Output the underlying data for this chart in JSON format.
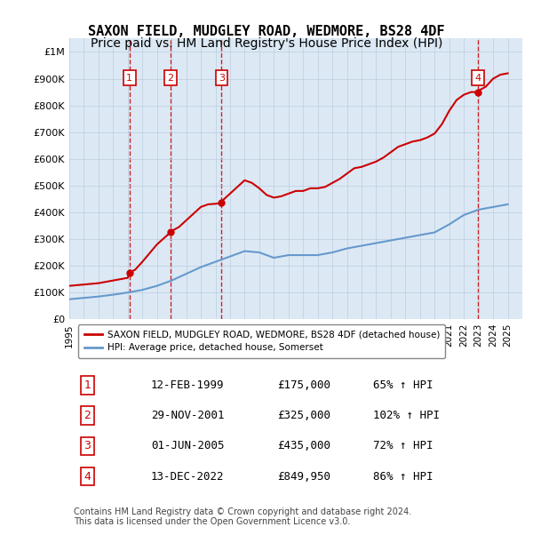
{
  "title": "SAXON FIELD, MUDGLEY ROAD, WEDMORE, BS28 4DF",
  "subtitle": "Price paid vs. HM Land Registry's House Price Index (HPI)",
  "title_fontsize": 11,
  "subtitle_fontsize": 10,
  "background_color": "#dce9f5",
  "plot_bg_color": "#dce9f5",
  "ylim": [
    0,
    1050000
  ],
  "xlim_start": 1995,
  "xlim_end": 2026,
  "yticks": [
    0,
    100000,
    200000,
    300000,
    400000,
    500000,
    600000,
    700000,
    800000,
    900000,
    1000000
  ],
  "ytick_labels": [
    "£0",
    "£100K",
    "£200K",
    "£300K",
    "£400K",
    "£500K",
    "£600K",
    "£700K",
    "£800K",
    "£900K",
    "£1M"
  ],
  "xticks": [
    1995,
    1996,
    1997,
    1998,
    1999,
    2000,
    2001,
    2002,
    2003,
    2004,
    2005,
    2006,
    2007,
    2008,
    2009,
    2010,
    2011,
    2012,
    2013,
    2014,
    2015,
    2016,
    2017,
    2018,
    2019,
    2020,
    2021,
    2022,
    2023,
    2024,
    2025
  ],
  "sale_dates": [
    1999.12,
    2001.92,
    2005.42,
    2022.95
  ],
  "sale_prices": [
    175000,
    325000,
    435000,
    849950
  ],
  "sale_labels": [
    "1",
    "2",
    "3",
    "4"
  ],
  "red_color": "#cc0000",
  "blue_color": "#6699cc",
  "sale_marker_color": "#cc0000",
  "vline_color": "#cc0000",
  "red_line_x": [
    1995.0,
    1996.0,
    1997.0,
    1998.0,
    1999.0,
    1999.12,
    1999.5,
    2000.0,
    2001.0,
    2001.92,
    2002.0,
    2002.5,
    2003.0,
    2003.5,
    2004.0,
    2004.5,
    2005.0,
    2005.42,
    2005.5,
    2006.0,
    2006.5,
    2007.0,
    2007.5,
    2008.0,
    2008.5,
    2009.0,
    2009.5,
    2010.0,
    2010.5,
    2011.0,
    2011.5,
    2012.0,
    2012.5,
    2013.0,
    2013.5,
    2014.0,
    2014.5,
    2015.0,
    2015.5,
    2016.0,
    2016.5,
    2017.0,
    2017.5,
    2018.0,
    2018.5,
    2019.0,
    2019.5,
    2020.0,
    2020.5,
    2021.0,
    2021.5,
    2022.0,
    2022.5,
    2022.95,
    2023.0,
    2023.5,
    2024.0,
    2024.5,
    2025.0
  ],
  "red_line_y": [
    125000,
    130000,
    135000,
    145000,
    155000,
    175000,
    185000,
    215000,
    280000,
    325000,
    330000,
    345000,
    370000,
    395000,
    420000,
    430000,
    432000,
    435000,
    445000,
    470000,
    495000,
    520000,
    510000,
    490000,
    465000,
    455000,
    460000,
    470000,
    480000,
    480000,
    490000,
    490000,
    495000,
    510000,
    525000,
    545000,
    565000,
    570000,
    580000,
    590000,
    605000,
    625000,
    645000,
    655000,
    665000,
    670000,
    680000,
    695000,
    730000,
    780000,
    820000,
    840000,
    850000,
    849950,
    855000,
    870000,
    900000,
    915000,
    920000
  ],
  "blue_line_x": [
    1995.0,
    1996.0,
    1997.0,
    1998.0,
    1999.0,
    2000.0,
    2001.0,
    2002.0,
    2003.0,
    2004.0,
    2005.0,
    2006.0,
    2007.0,
    2008.0,
    2009.0,
    2010.0,
    2011.0,
    2012.0,
    2013.0,
    2014.0,
    2015.0,
    2016.0,
    2017.0,
    2018.0,
    2019.0,
    2020.0,
    2021.0,
    2022.0,
    2023.0,
    2024.0,
    2025.0
  ],
  "blue_line_y": [
    75000,
    80000,
    85000,
    92000,
    100000,
    110000,
    125000,
    145000,
    170000,
    195000,
    215000,
    235000,
    255000,
    250000,
    230000,
    240000,
    240000,
    240000,
    250000,
    265000,
    275000,
    285000,
    295000,
    305000,
    315000,
    325000,
    355000,
    390000,
    410000,
    420000,
    430000
  ],
  "legend_label_red": "SAXON FIELD, MUDGLEY ROAD, WEDMORE, BS28 4DF (detached house)",
  "legend_label_blue": "HPI: Average price, detached house, Somerset",
  "table_data": [
    [
      "1",
      "12-FEB-1999",
      "£175,000",
      "65% ↑ HPI"
    ],
    [
      "2",
      "29-NOV-2001",
      "£325,000",
      "102% ↑ HPI"
    ],
    [
      "3",
      "01-JUN-2005",
      "£435,000",
      "72% ↑ HPI"
    ],
    [
      "4",
      "13-DEC-2022",
      "£849,950",
      "86% ↑ HPI"
    ]
  ],
  "footer_text": "Contains HM Land Registry data © Crown copyright and database right 2024.\nThis data is licensed under the Open Government Licence v3.0.",
  "grid_color": "#bbccdd",
  "grid_alpha": 0.7
}
